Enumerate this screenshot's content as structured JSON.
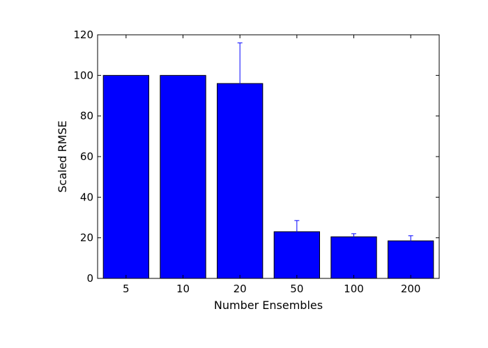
{
  "chart_data": {
    "type": "bar",
    "title": "",
    "xlabel": "Number Ensembles",
    "ylabel": "Scaled RMSE",
    "categories": [
      "5",
      "10",
      "20",
      "50",
      "100",
      "200"
    ],
    "values": [
      100,
      100,
      96,
      23,
      20.5,
      18.5
    ],
    "errors": [
      0,
      0,
      20,
      5.5,
      1.5,
      2.5
    ],
    "ylim": [
      0,
      120
    ],
    "yticks": [
      0,
      20,
      40,
      60,
      80,
      100,
      120
    ],
    "grid": false,
    "bar_color": "#0000ff",
    "edge_color": "#000000",
    "error_color": "#0000ff"
  }
}
